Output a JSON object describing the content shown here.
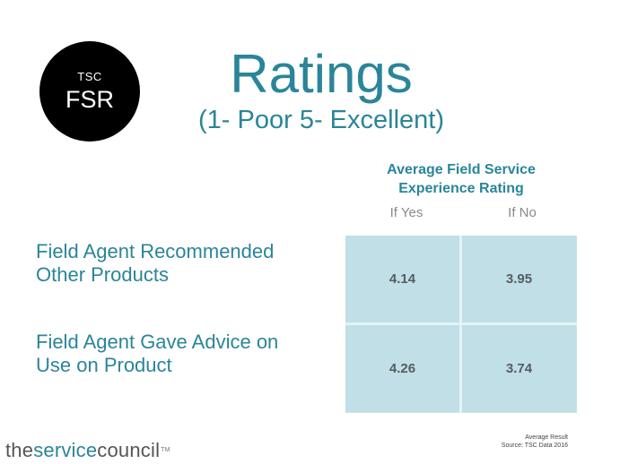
{
  "logo": {
    "small": "TSC",
    "big": "FSR"
  },
  "title": "Ratings",
  "subtitle": "(1- Poor 5- Excellent)",
  "table": {
    "header_line1": "Average Field Service",
    "header_line2": "Experience Rating",
    "columns": [
      "If Yes",
      "If No"
    ],
    "rows": [
      {
        "label_line1": "Field Agent Recommended",
        "label_line2": "Other Products",
        "values": [
          "4.14",
          "3.95"
        ]
      },
      {
        "label_line1": "Field Agent Gave Advice on",
        "label_line2": "Use on Product",
        "values": [
          "4.26",
          "3.74"
        ]
      }
    ]
  },
  "footnote": {
    "line1": "Average Result",
    "line2": "Source: TSC Data 2016"
  },
  "brand": {
    "part1": "the",
    "part2": "service",
    "part3": "council",
    "tm": "TM"
  },
  "colors": {
    "accent": "#2a8599",
    "cell": "#c0dfe7",
    "logo_bg": "#000000"
  }
}
